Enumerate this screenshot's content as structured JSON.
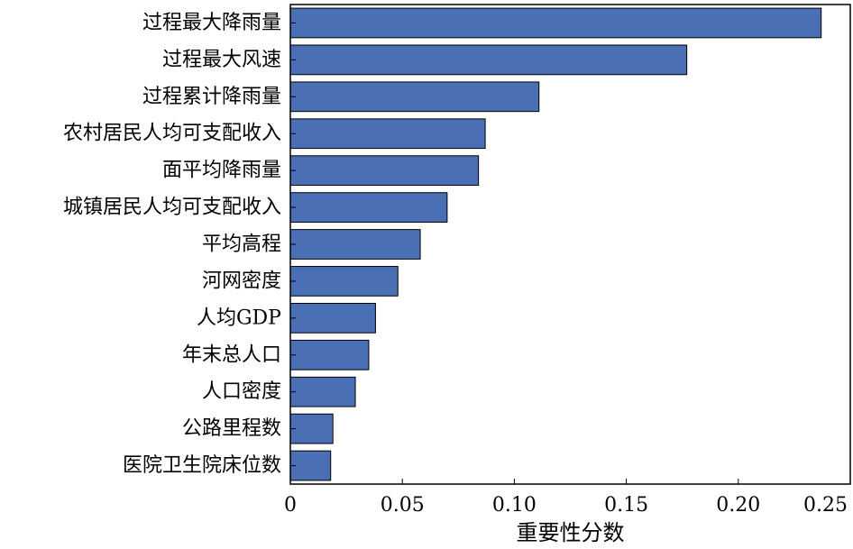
{
  "chart_data": {
    "type": "bar",
    "orientation": "horizontal",
    "categories": [
      "过程最大降雨量",
      "过程最大风速",
      "过程累计降雨量",
      "农村居民人均可支配收入",
      "面平均降雨量",
      "城镇居民人均可支配收入",
      "平均高程",
      "河网密度",
      "人均GDP",
      "年末总人口",
      "人口密度",
      "公路里程数",
      "医院卫生院床位数"
    ],
    "values": [
      0.237,
      0.177,
      0.111,
      0.087,
      0.084,
      0.07,
      0.058,
      0.048,
      0.038,
      0.035,
      0.029,
      0.019,
      0.018
    ],
    "xlabel": "重要性分数",
    "ylabel": "",
    "xlim": [
      0,
      0.25
    ],
    "xticks": [
      "0",
      "0.05",
      "0.10",
      "0.15",
      "0.20",
      "0.25"
    ],
    "bar_color": "#4a6fb5",
    "bar_edge_color": "#000000",
    "grid": false,
    "legend": "none"
  }
}
